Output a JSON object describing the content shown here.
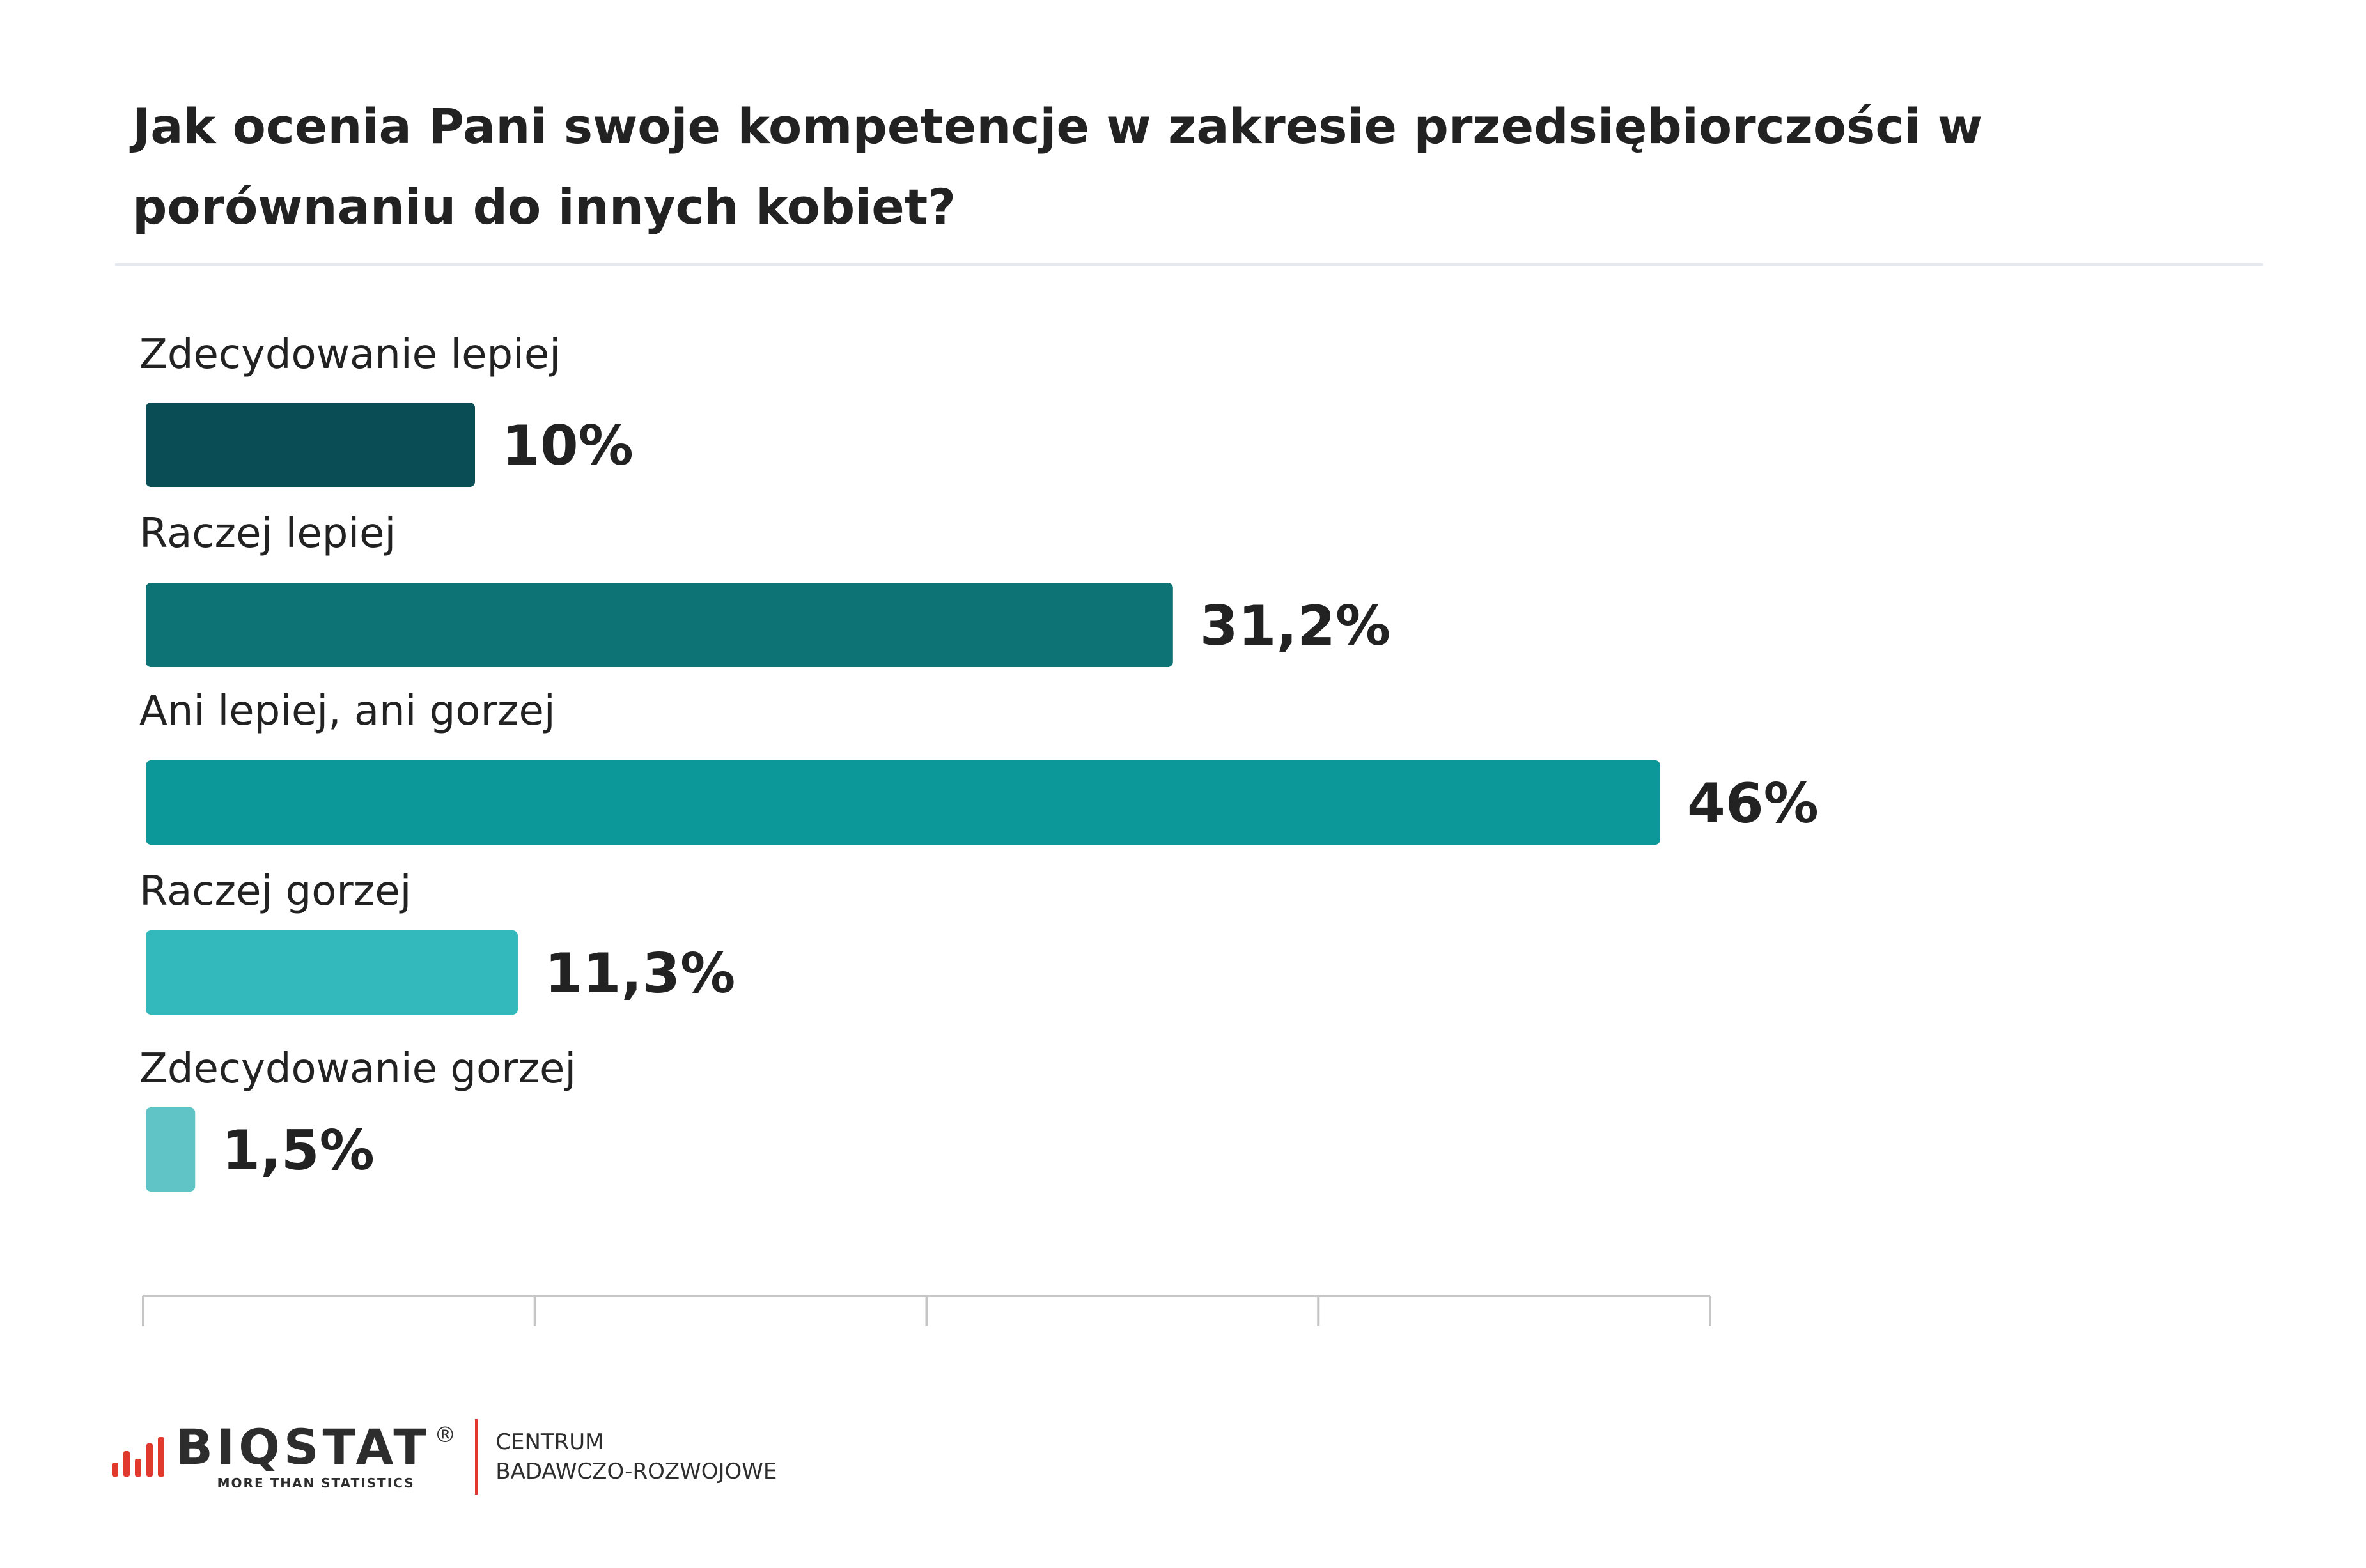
{
  "title": "Jak ocenia Pani swoje kompetencje w zakresie przedsiębiorczości w porównaniu do innych kobiet?",
  "chart_data": {
    "type": "bar",
    "orientation": "horizontal",
    "title": "Jak ocenia Pani swoje kompetencje w zakresie przedsiębiorczości w porównaniu do innych kobiet?",
    "categories": [
      "Zdecydowanie lepiej",
      "Raczej lepiej",
      "Ani lepiej, ani gorzej",
      "Raczej gorzej",
      "Zdecydowanie gorzej"
    ],
    "values": [
      10,
      31.2,
      46,
      11.3,
      1.5
    ],
    "value_labels": [
      "10%",
      "31,2%",
      "46%",
      "11,3%",
      "1,5%"
    ],
    "colors": [
      "#0a4d54",
      "#0e7374",
      "#0c9799",
      "#33b8bc",
      "#60c4c6"
    ],
    "xlim": [
      0,
      48
    ],
    "unit": "%",
    "grid": false,
    "legend": "none"
  },
  "footer": {
    "brand": "BIQSTAT",
    "registered": "®",
    "tagline": "MORE THAN STATISTICS",
    "centrum_line1": "CENTRUM",
    "centrum_line2": "BADAWCZO-ROZWOJOWE",
    "accent_color": "#e03a2f"
  }
}
